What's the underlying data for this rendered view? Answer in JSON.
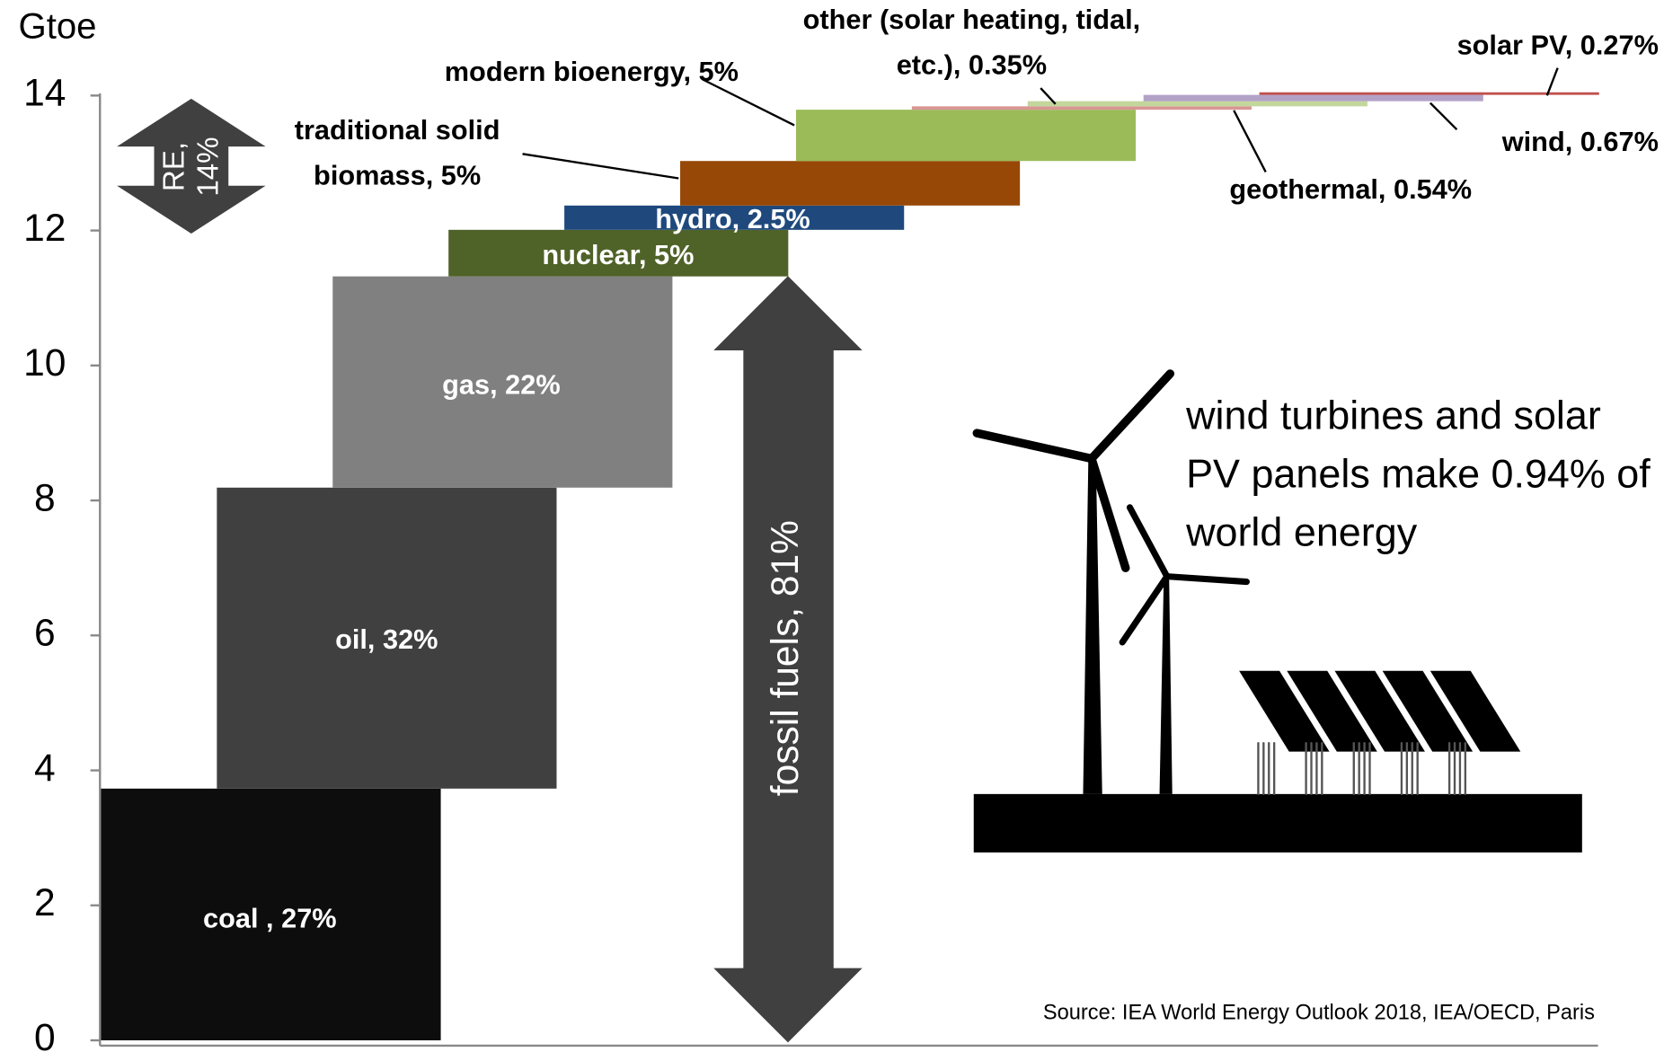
{
  "chart_data": {
    "type": "waterfall",
    "ylabel": "Gtoe",
    "categories": [
      "coal , 27%",
      "oil, 32%",
      "gas, 22%",
      "nuclear, 5%",
      "hydro, 2.5%",
      "traditional solid biomass, 5%",
      "modern bioenergy, 5%",
      "other (solar heating, tidal, etc.), 0.35%",
      "geothermal, 0.54%",
      "wind, 0.67%",
      "solar PV, 0.27%"
    ],
    "values": [
      3.73,
      4.46,
      3.13,
      0.69,
      0.36,
      0.66,
      0.76,
      0.05,
      0.076,
      0.094,
      0.038
    ],
    "colors": [
      "#0d0d0d",
      "#404040",
      "#808080",
      "#4f6228",
      "#1f497d",
      "#974806",
      "#9bbb59",
      "#d99694",
      "#c3d69b",
      "#b3a2c7",
      "#c0504d"
    ],
    "ylim": [
      0,
      14
    ],
    "yticks": [
      0,
      2,
      4,
      6,
      8,
      10,
      12,
      14
    ],
    "re_label": "RE, 14%",
    "fossil_label": "fossil fuels, 81%",
    "note": "wind turbines and solar PV panels make 0.94% of world energy",
    "source": "Source:  IEA World Energy Outlook 2018, IEA/OECD, Paris"
  }
}
